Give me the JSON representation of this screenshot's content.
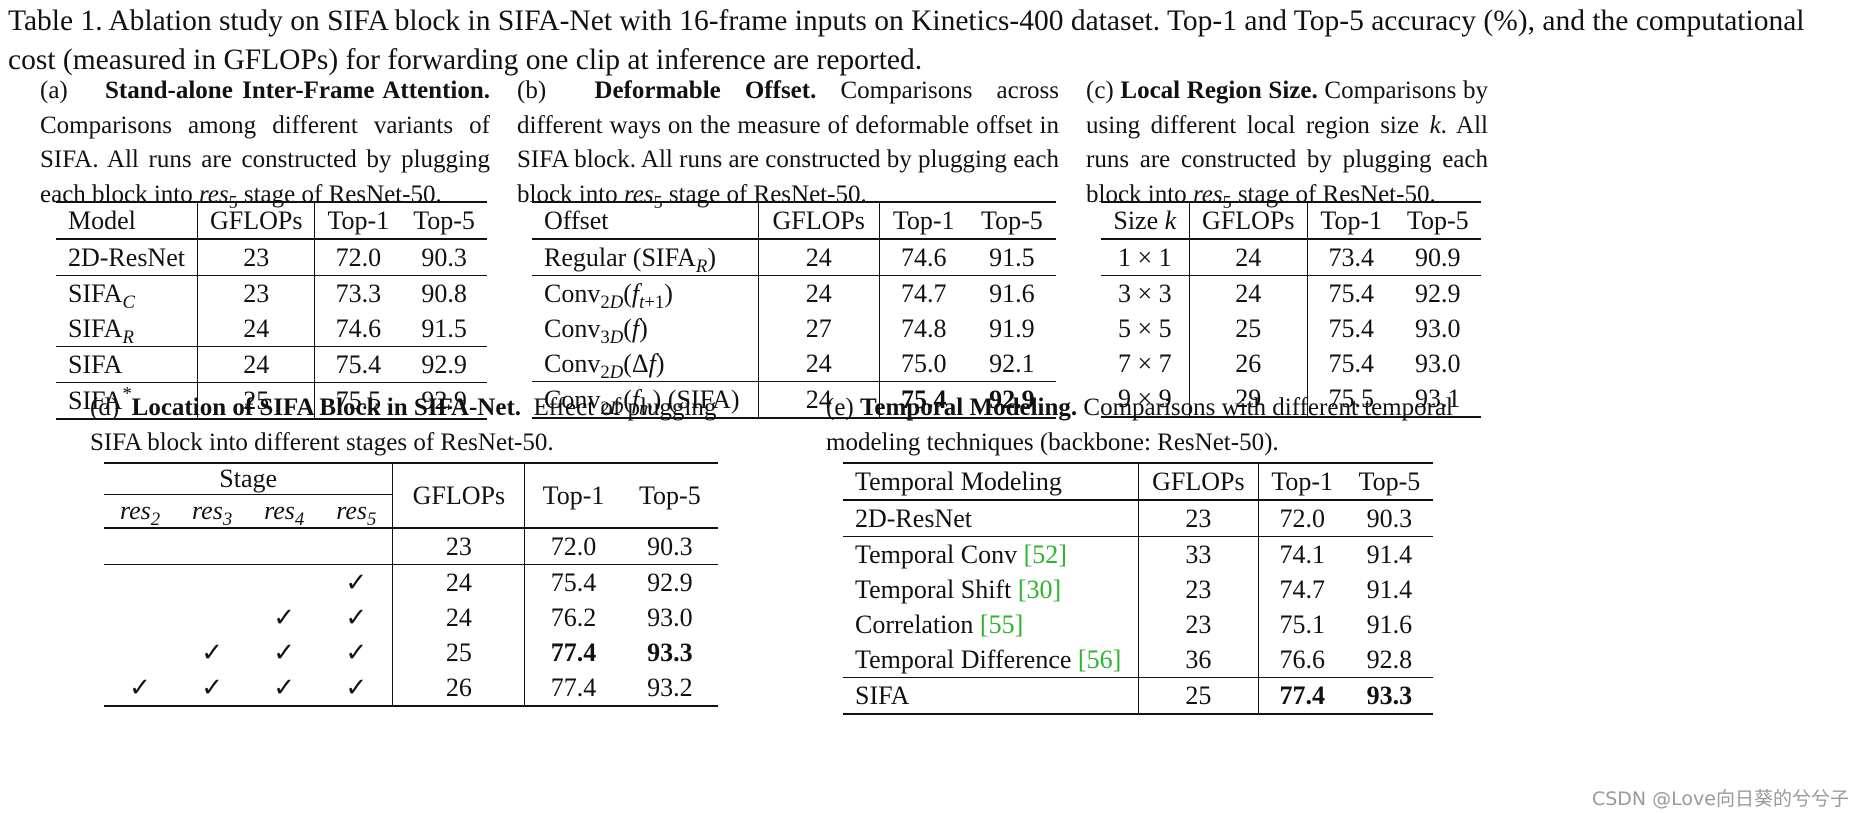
{
  "caption": "Table 1. Ablation study on SIFA block in SIFA-Net with 16-frame inputs on Kinetics-400 dataset. Top-1 and Top-5 accuracy (%), and the computational cost (measured in GFLOPs) for forwarding one clip at inference are reported.",
  "panel_a": {
    "label": "(a)",
    "title": "Stand-alone Inter-Frame Attention.",
    "desc": "Comparisons among different variants of SIFA. All runs are constructed by plugging each block into res5 stage of ResNet-50.",
    "headers": [
      "Model",
      "GFLOPs",
      "Top-1",
      "Top-5"
    ],
    "rows": [
      {
        "model": "2D-ResNet",
        "gflops": "23",
        "top1": "72.0",
        "top5": "90.3"
      },
      {
        "model": "SIFA_C",
        "gflops": "23",
        "top1": "73.3",
        "top5": "90.8"
      },
      {
        "model": "SIFA_R",
        "gflops": "24",
        "top1": "74.6",
        "top5": "91.5"
      },
      {
        "model": "SIFA",
        "gflops": "24",
        "top1": "75.4",
        "top5": "92.9"
      },
      {
        "model": "SIFA*",
        "gflops": "25",
        "top1": "75.5",
        "top5": "92.9"
      }
    ]
  },
  "panel_b": {
    "label": "(b)",
    "title": "Deformable Offset.",
    "desc": "Comparisons across different ways on the measure of deformable offset in SIFA block. All runs are constructed by plugging each block into res5 stage of ResNet-50.",
    "headers": [
      "Offset",
      "GFLOPs",
      "Top-1",
      "Top-5"
    ],
    "rows": [
      {
        "offset": "Regular (SIFA_R)",
        "gflops": "24",
        "top1": "74.6",
        "top5": "91.5"
      },
      {
        "offset": "Conv_2D(f_t+1)",
        "gflops": "24",
        "top1": "74.7",
        "top5": "91.6"
      },
      {
        "offset": "Conv_3D(f)",
        "gflops": "27",
        "top1": "74.8",
        "top5": "91.9"
      },
      {
        "offset": "Conv_2D(Δf)",
        "gflops": "24",
        "top1": "75.0",
        "top5": "92.1"
      },
      {
        "offset": "Conv_2D(f_m) (SIFA)",
        "gflops": "24",
        "top1": "75.4",
        "top5": "92.9"
      }
    ]
  },
  "panel_c": {
    "label": "(c)",
    "title": "Local Region Size.",
    "desc": "Comparisons by using different local region size k. All runs are constructed by plugging each block into res5 stage of ResNet-50.",
    "headers": [
      "Size k",
      "GFLOPs",
      "Top-1",
      "Top-5"
    ],
    "rows": [
      {
        "size": "1 × 1",
        "gflops": "24",
        "top1": "73.4",
        "top5": "90.9"
      },
      {
        "size": "3 × 3",
        "gflops": "24",
        "top1": "75.4",
        "top5": "92.9"
      },
      {
        "size": "5 × 5",
        "gflops": "25",
        "top1": "75.4",
        "top5": "93.0"
      },
      {
        "size": "7 × 7",
        "gflops": "26",
        "top1": "75.4",
        "top5": "93.0"
      },
      {
        "size": "9 × 9",
        "gflops": "29",
        "top1": "75.5",
        "top5": "93.1"
      }
    ]
  },
  "panel_d": {
    "label": "(d)",
    "title": "Location of SIFA Block in SIFA-Net.",
    "desc": "Effect of plugging SIFA block into different stages of ResNet-50.",
    "stage_header": "Stage",
    "stage_cols": [
      "res2",
      "res3",
      "res4",
      "res5"
    ],
    "headers": [
      "GFLOPs",
      "Top-1",
      "Top-5"
    ],
    "check": "✓",
    "rows": [
      {
        "res2": "",
        "res3": "",
        "res4": "",
        "res5": "",
        "gflops": "23",
        "top1": "72.0",
        "top5": "90.3"
      },
      {
        "res2": "",
        "res3": "",
        "res4": "",
        "res5": "✓",
        "gflops": "24",
        "top1": "75.4",
        "top5": "92.9"
      },
      {
        "res2": "",
        "res3": "",
        "res4": "✓",
        "res5": "✓",
        "gflops": "24",
        "top1": "76.2",
        "top5": "93.0"
      },
      {
        "res2": "",
        "res3": "✓",
        "res4": "✓",
        "res5": "✓",
        "gflops": "25",
        "top1": "77.4",
        "top5": "93.3"
      },
      {
        "res2": "✓",
        "res3": "✓",
        "res4": "✓",
        "res5": "✓",
        "gflops": "26",
        "top1": "77.4",
        "top5": "93.2"
      }
    ]
  },
  "panel_e": {
    "label": "(e)",
    "title": "Temporal Modeling.",
    "desc": "Comparisons with different temporal modeling techniques (backbone: ResNet-50).",
    "headers": [
      "Temporal Modeling",
      "GFLOPs",
      "Top-1",
      "Top-5"
    ],
    "rows": [
      {
        "name": "2D-ResNet",
        "ref": "",
        "gflops": "23",
        "top1": "72.0",
        "top5": "90.3"
      },
      {
        "name": "Temporal Conv",
        "ref": "[52]",
        "gflops": "33",
        "top1": "74.1",
        "top5": "91.4"
      },
      {
        "name": "Temporal Shift",
        "ref": "[30]",
        "gflops": "23",
        "top1": "74.7",
        "top5": "91.4"
      },
      {
        "name": "Correlation",
        "ref": "[55]",
        "gflops": "23",
        "top1": "75.1",
        "top5": "91.6"
      },
      {
        "name": "Temporal Difference",
        "ref": "[56]",
        "gflops": "36",
        "top1": "76.6",
        "top5": "92.8"
      },
      {
        "name": "SIFA",
        "ref": "",
        "gflops": "25",
        "top1": "77.4",
        "top5": "93.3"
      }
    ]
  },
  "watermark": "CSDN @Love向日葵的兮兮子",
  "colors": {
    "text": "#111111",
    "reference": "#2db52d",
    "watermark": "#9a9a9a"
  }
}
